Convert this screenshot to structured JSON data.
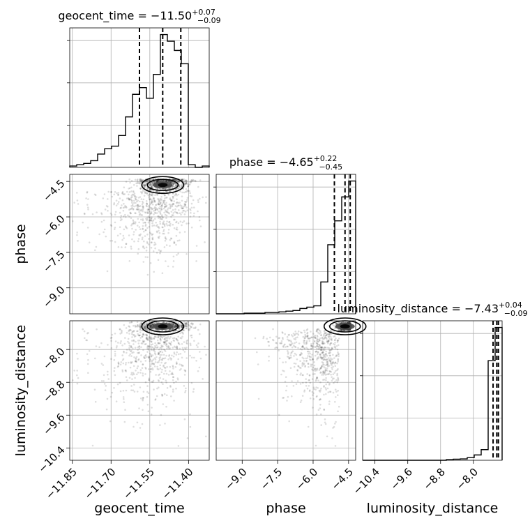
{
  "chart_data": {
    "type": "scatter",
    "parameters": [
      "geocent_time",
      "phase",
      "luminosity_distance"
    ],
    "titles": [
      {
        "param": "geocent_time",
        "text": "geocent_time = −11.50",
        "sup": "+0.07",
        "sub": "−0.09"
      },
      {
        "param": "phase",
        "text": "phase = −4.65",
        "sup": "+0.22",
        "sub": "−0.45"
      },
      {
        "param": "luminosity_distance",
        "text": "luminosity_distance = −7.43",
        "sup": "+0.04",
        "sub": "−0.09"
      }
    ],
    "axis_labels": {
      "x": [
        "geocent_time",
        "phase",
        "luminosity_distance"
      ],
      "y": [
        "phase",
        "luminosity_distance"
      ]
    },
    "ranges": {
      "geocent_time": [
        -11.86,
        -11.32
      ],
      "phase": [
        -10.1,
        -4.2
      ],
      "luminosity_distance": [
        -10.7,
        -7.3
      ]
    },
    "ticks": {
      "geocent_time": [
        "−11.85",
        "−11.70",
        "−11.55",
        "−11.40"
      ],
      "phase": [
        "−9.0",
        "−7.5",
        "−6.0",
        "−4.5"
      ],
      "luminosity_distance": [
        "−10.4",
        "−9.6",
        "−8.8",
        "−8.0"
      ]
    },
    "tick_values": {
      "geocent_time": [
        -11.85,
        -11.7,
        -11.55,
        -11.4
      ],
      "phase": [
        -9.0,
        -7.5,
        -6.0,
        -4.5
      ],
      "luminosity_distance": [
        -10.4,
        -9.6,
        -8.8,
        -8.0
      ]
    },
    "quantiles": {
      "geocent_time": [
        -11.59,
        -11.5,
        -11.43
      ],
      "phase": [
        -5.1,
        -4.65,
        -4.43
      ],
      "luminosity_distance": [
        -7.52,
        -7.43,
        -7.39
      ]
    },
    "histograms": {
      "geocent_time": {
        "edges": [
          -11.86,
          -11.833,
          -11.806,
          -11.779,
          -11.752,
          -11.725,
          -11.698,
          -11.671,
          -11.644,
          -11.617,
          -11.59,
          -11.563,
          -11.536,
          -11.509,
          -11.482,
          -11.455,
          -11.428,
          -11.401,
          -11.374,
          -11.347,
          -11.32
        ],
        "counts": [
          1,
          2,
          3,
          5,
          10,
          14,
          16,
          24,
          38,
          55,
          60,
          52,
          70,
          100,
          95,
          88,
          78,
          2,
          0,
          1
        ]
      },
      "phase": {
        "edges": [
          -10.1,
          -9.805,
          -9.51,
          -9.215,
          -8.92,
          -8.625,
          -8.33,
          -8.035,
          -7.74,
          -7.445,
          -7.15,
          -6.855,
          -6.56,
          -6.265,
          -5.97,
          -5.675,
          -5.38,
          -5.085,
          -4.79,
          -4.495,
          -4.2
        ],
        "counts": [
          0,
          0,
          0,
          0,
          0.5,
          0.5,
          0.5,
          1,
          1,
          1.5,
          2,
          2.5,
          4,
          5,
          6,
          24,
          52,
          70,
          88,
          100
        ]
      },
      "luminosity_distance": {
        "edges": [
          -10.7,
          -10.53,
          -10.36,
          -10.19,
          -10.02,
          -9.85,
          -9.68,
          -9.51,
          -9.34,
          -9.17,
          -9.0,
          -8.83,
          -8.66,
          -8.49,
          -8.32,
          -8.15,
          -7.98,
          -7.81,
          -7.64,
          -7.47,
          -7.3
        ],
        "counts": [
          0,
          0,
          0,
          0,
          0,
          0,
          0,
          0,
          0,
          0,
          0,
          0,
          0.5,
          0.8,
          1,
          2,
          4,
          8,
          75,
          100
        ]
      }
    },
    "grid": true,
    "style": "corner plot: 1D histograms on diagonal with dashed 16/50/84% quantile lines; 2D density scatter with filled contours below diagonal",
    "colors": {
      "hist": "#000000",
      "points": "#000000",
      "contour_fill": [
        "#000000",
        "#4a4a4a",
        "#9a9a9a",
        "#d9d9d9"
      ]
    }
  }
}
